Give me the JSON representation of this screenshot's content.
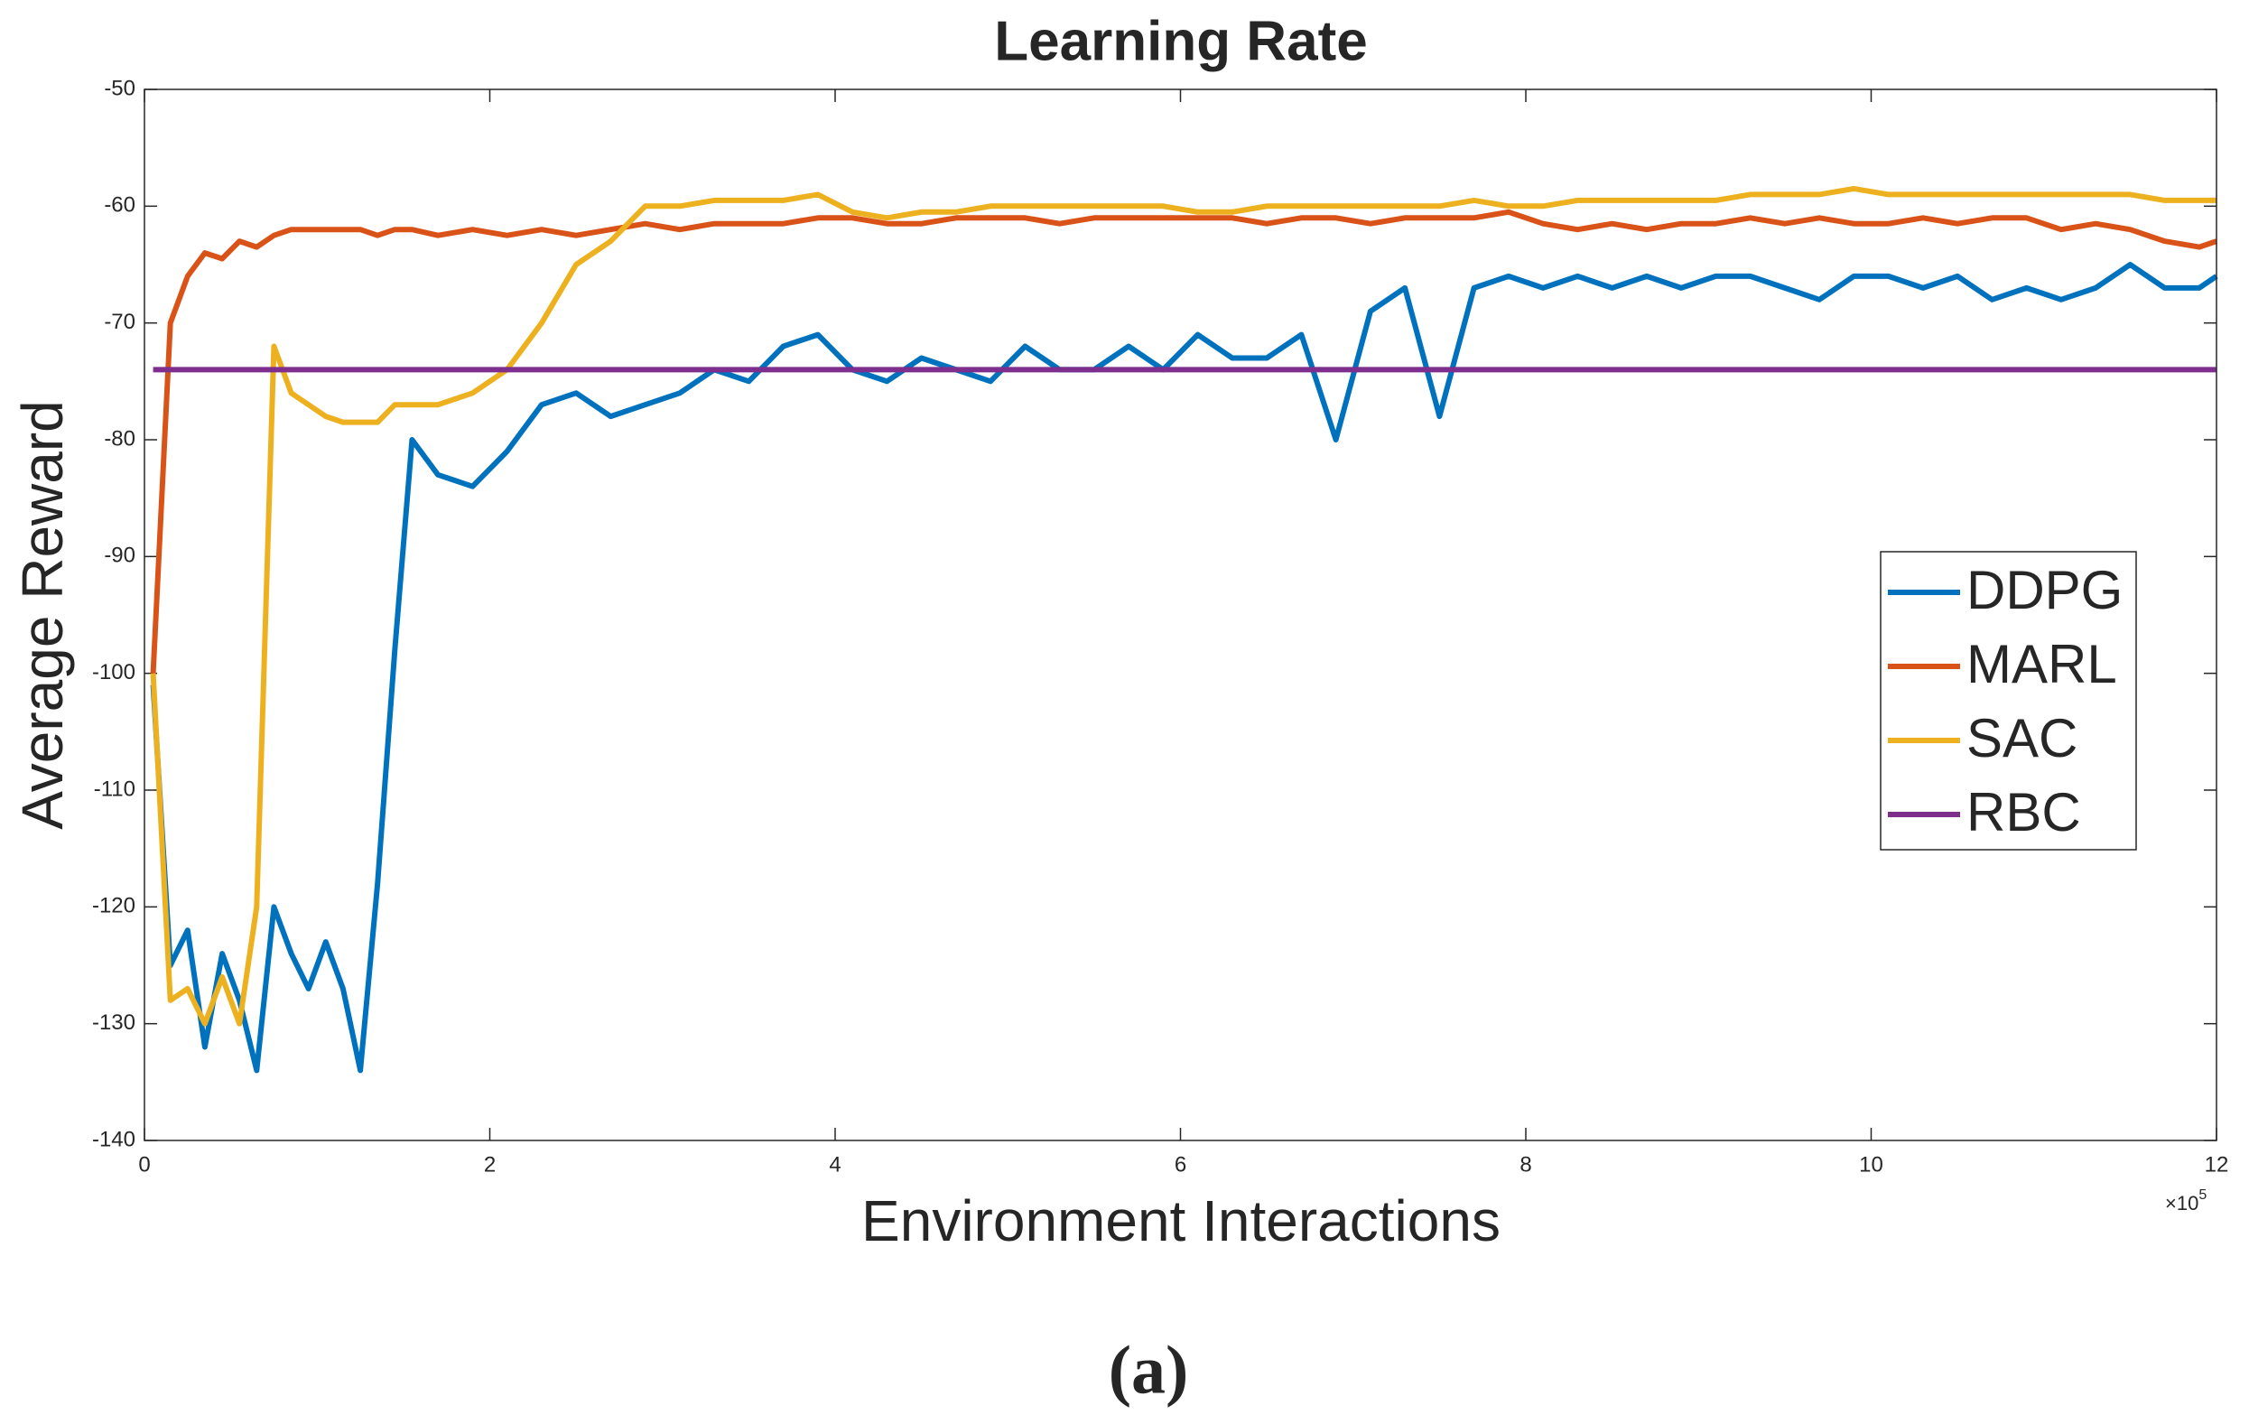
{
  "chart_data": {
    "type": "line",
    "title": "Learning Rate",
    "xlabel": "Environment Interactions",
    "ylabel": "Average Reward",
    "x_multiplier": {
      "base": "×10",
      "exponent": "5"
    },
    "caption": "(a)",
    "x": [
      0.05,
      0.15,
      0.25,
      0.35,
      0.45,
      0.55,
      0.65,
      0.75,
      0.85,
      0.95,
      1.05,
      1.15,
      1.25,
      1.35,
      1.45,
      1.55,
      1.7,
      1.9,
      2.1,
      2.3,
      2.5,
      2.7,
      2.9,
      3.1,
      3.3,
      3.5,
      3.7,
      3.9,
      4.1,
      4.3,
      4.5,
      4.7,
      4.9,
      5.1,
      5.3,
      5.5,
      5.7,
      5.9,
      6.1,
      6.3,
      6.5,
      6.7,
      6.9,
      7.1,
      7.3,
      7.5,
      7.7,
      7.9,
      8.1,
      8.3,
      8.5,
      8.7,
      8.9,
      9.1,
      9.3,
      9.5,
      9.7,
      9.9,
      10.1,
      10.3,
      10.5,
      10.7,
      10.9,
      11.1,
      11.3,
      11.5,
      11.7,
      11.9,
      12.0
    ],
    "series": [
      {
        "name": "DDPG",
        "color": "#0072BD",
        "values": [
          -101,
          -125,
          -122,
          -132,
          -124,
          -128,
          -134,
          -120,
          -124,
          -127,
          -123,
          -127,
          -134,
          -118,
          -98,
          -80,
          -83,
          -84,
          -81,
          -77,
          -76,
          -78,
          -77,
          -76,
          -74,
          -75,
          -72,
          -71,
          -74,
          -75,
          -73,
          -74,
          -75,
          -72,
          -74,
          -74,
          -72,
          -74,
          -71,
          -73,
          -73,
          -71,
          -80,
          -69,
          -67,
          -78,
          -67,
          -66,
          -67,
          -66,
          -67,
          -66,
          -67,
          -66,
          -66,
          -67,
          -68,
          -66,
          -66,
          -67,
          -66,
          -68,
          -67,
          -68,
          -67,
          -65,
          -67,
          -67,
          -66
        ]
      },
      {
        "name": "MARL",
        "color": "#D95319",
        "values": [
          -100,
          -70,
          -66,
          -64,
          -64.5,
          -63,
          -63.5,
          -62.5,
          -62,
          -62,
          -62,
          -62,
          -62,
          -62.5,
          -62,
          -62,
          -62.5,
          -62,
          -62.5,
          -62,
          -62.5,
          -62,
          -61.5,
          -62,
          -61.5,
          -61.5,
          -61.5,
          -61,
          -61,
          -61.5,
          -61.5,
          -61,
          -61,
          -61,
          -61.5,
          -61,
          -61,
          -61,
          -61,
          -61,
          -61.5,
          -61,
          -61,
          -61.5,
          -61,
          -61,
          -61,
          -60.5,
          -61.5,
          -62,
          -61.5,
          -62,
          -61.5,
          -61.5,
          -61,
          -61.5,
          -61,
          -61.5,
          -61.5,
          -61,
          -61.5,
          -61,
          -61,
          -62,
          -61.5,
          -62,
          -63,
          -63.5,
          -63
        ]
      },
      {
        "name": "SAC",
        "color": "#EDB120",
        "values": [
          -100,
          -128,
          -127,
          -130,
          -126,
          -130,
          -120,
          -72,
          -76,
          -77,
          -78,
          -78.5,
          -78.5,
          -78.5,
          -77,
          -77,
          -77,
          -76,
          -74,
          -70,
          -65,
          -63,
          -60,
          -60,
          -59.5,
          -59.5,
          -59.5,
          -59,
          -60.5,
          -61,
          -60.5,
          -60.5,
          -60,
          -60,
          -60,
          -60,
          -60,
          -60,
          -60.5,
          -60.5,
          -60,
          -60,
          -60,
          -60,
          -60,
          -60,
          -59.5,
          -60,
          -60,
          -59.5,
          -59.5,
          -59.5,
          -59.5,
          -59.5,
          -59,
          -59,
          -59,
          -58.5,
          -59,
          -59,
          -59,
          -59,
          -59,
          -59,
          -59,
          -59,
          -59.5,
          -59.5,
          -59.5
        ]
      },
      {
        "name": "RBC",
        "color": "#7E2F8E",
        "x": [
          0.05,
          12
        ],
        "values": [
          -74,
          -74
        ]
      }
    ],
    "xlim": [
      0,
      12
    ],
    "ylim": [
      -140,
      -50
    ],
    "xticks": [
      0,
      2,
      4,
      6,
      8,
      10,
      12
    ],
    "yticks": [
      -140,
      -130,
      -120,
      -110,
      -100,
      -90,
      -80,
      -70,
      -60,
      -50
    ],
    "legend": "east"
  }
}
